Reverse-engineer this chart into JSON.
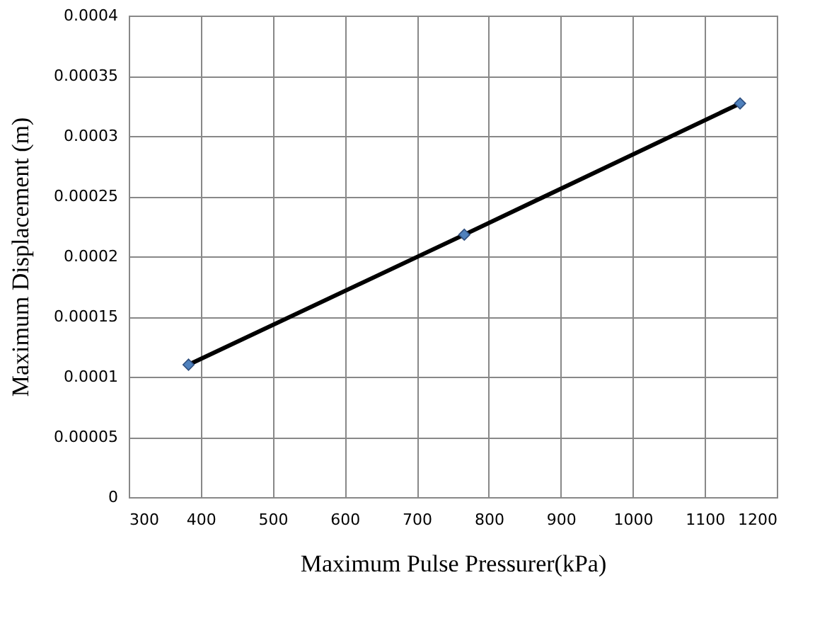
{
  "chart_data": {
    "type": "scatter",
    "xlabel": "Maximum Pulse Pressurer(kPa)",
    "ylabel": "Maximum Displacement (m)",
    "xlim": [
      300,
      1200
    ],
    "xticks": [
      300,
      400,
      500,
      600,
      700,
      800,
      900,
      1000,
      1100,
      1200
    ],
    "ylim": [
      0,
      0.0004
    ],
    "yticks": [
      0,
      {
        "value": 5e-05,
        "label": "0.00005"
      },
      0.0001,
      0.00015,
      0.0002,
      0.00025,
      0.0003,
      0.00035,
      0.0004
    ],
    "grid": true,
    "series": [
      {
        "type": "line",
        "color": "#000000",
        "x": [
          383,
          766,
          1149
        ],
        "values": [
          0.00011,
          0.000218,
          0.000327
        ],
        "marker": "none",
        "line_style": "solid"
      },
      {
        "color": "#4f81bd",
        "x": [
          383,
          766,
          1149
        ],
        "values": [
          0.00011,
          0.000218,
          0.000327
        ],
        "marker": "diamond"
      }
    ]
  }
}
